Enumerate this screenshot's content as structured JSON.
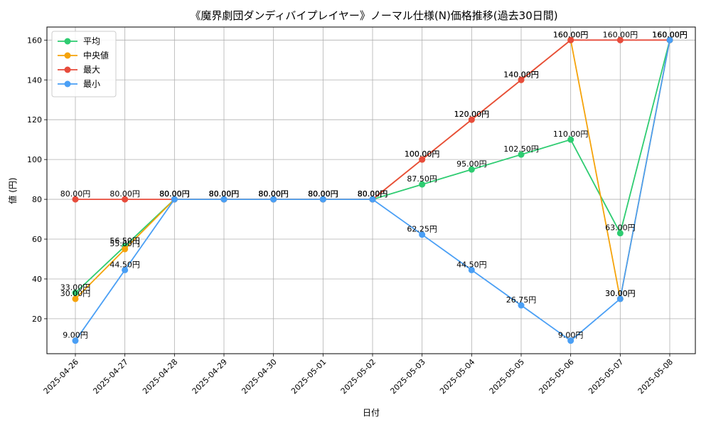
{
  "chart_data": {
    "type": "line",
    "title": "《魔界劇団ダンディバイプレイヤー》ノーマル仕様(N)価格推移(過去30日間)",
    "xlabel": "日付",
    "ylabel": "値 (円)",
    "ylim": [
      2.45,
      166.55
    ],
    "yticks": [
      20,
      40,
      60,
      80,
      100,
      120,
      140,
      160
    ],
    "grid": true,
    "legend_position": "top-left",
    "categories": [
      "2025-04-26",
      "2025-04-27",
      "2025-04-28",
      "2025-04-29",
      "2025-04-30",
      "2025-05-01",
      "2025-05-02",
      "2025-05-03",
      "2025-05-04",
      "2025-05-05",
      "2025-05-06",
      "2025-05-07",
      "2025-05-08"
    ],
    "series": [
      {
        "name": "平均",
        "color": "#2ecc71",
        "values": [
          33.0,
          56.5,
          80.0,
          80.0,
          80.0,
          80.0,
          80.0,
          87.5,
          95.0,
          102.5,
          110.0,
          63.0,
          160.0
        ],
        "labels": [
          "33.00円",
          "56.50円",
          "80.00円",
          "80.00円",
          "80.00円",
          "80.00円",
          "80.00円",
          "87.50円",
          "95.00円",
          "102.50円",
          "110.00円",
          "63.00円",
          "160.00円"
        ]
      },
      {
        "name": "中央値",
        "color": "#f5a30a",
        "values": [
          30.0,
          55.0,
          80.0,
          80.0,
          80.0,
          80.0,
          80.0,
          100.0,
          120.0,
          140.0,
          160.0,
          30.0,
          160.0
        ],
        "labels": [
          "30.00円",
          "55.00円",
          "80.00円",
          "80.00円",
          "80.00円",
          "80.00円",
          "80.00円",
          "100.00円",
          "120.00円",
          "140.00円",
          "160.00円",
          "30.00円",
          "160.00円"
        ]
      },
      {
        "name": "最大",
        "color": "#e74c3c",
        "values": [
          80.0,
          80.0,
          80.0,
          80.0,
          80.0,
          80.0,
          80.0,
          100.0,
          120.0,
          140.0,
          160.0,
          160.0,
          160.0
        ],
        "labels": [
          "80.00円",
          "80.00円",
          "80.00円",
          "80.00円",
          "80.00円",
          "80.00円",
          "80.00円",
          "100.00円",
          "120.00円",
          "140.00円",
          "160.00円",
          "160.00円",
          "160.00円"
        ]
      },
      {
        "name": "最小",
        "color": "#4a9ff5",
        "values": [
          9.0,
          44.5,
          80.0,
          80.0,
          80.0,
          80.0,
          80.0,
          62.25,
          44.5,
          26.75,
          9.0,
          30.0,
          160.0
        ],
        "labels": [
          "9.00円",
          "44.50円",
          "80.00円",
          "80.00円",
          "80.00円",
          "80.00円",
          "80.00円",
          "62.25円",
          "44.50円",
          "26.75円",
          "9.00円",
          "30.00円",
          "160.00円"
        ]
      }
    ]
  }
}
